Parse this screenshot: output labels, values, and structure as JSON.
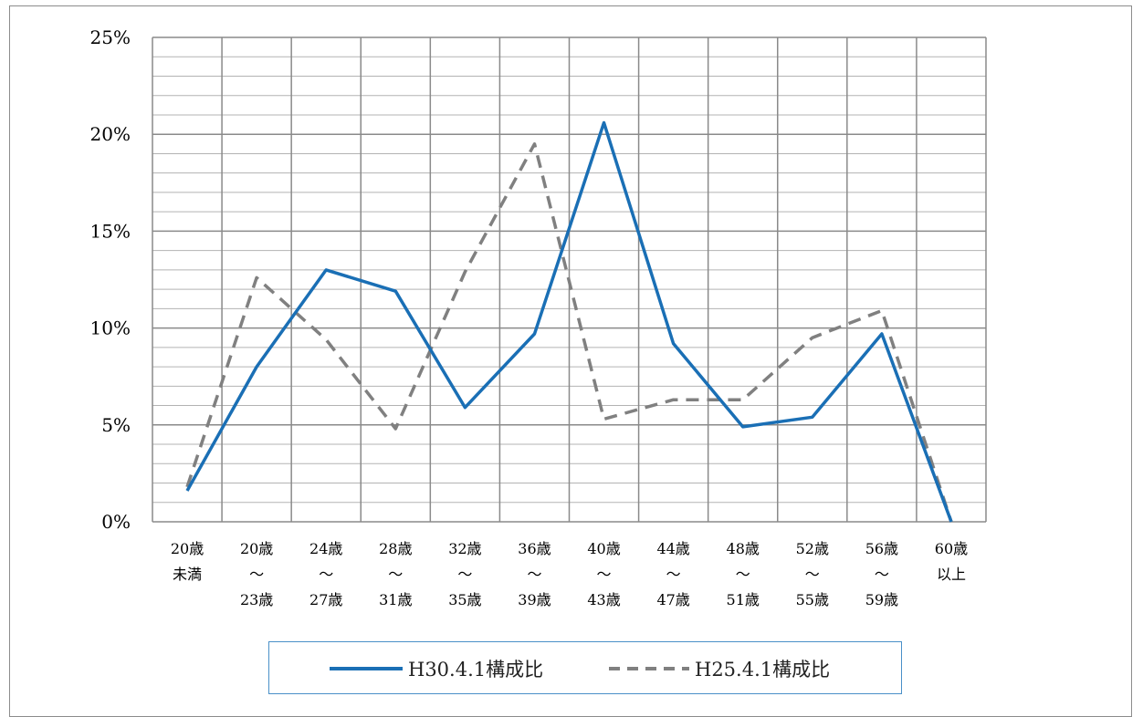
{
  "chart_data": {
    "type": "line",
    "categories": [
      [
        "20歳",
        "未満"
      ],
      [
        "20歳",
        "～",
        "23歳"
      ],
      [
        "24歳",
        "～",
        "27歳"
      ],
      [
        "28歳",
        "～",
        "31歳"
      ],
      [
        "32歳",
        "～",
        "35歳"
      ],
      [
        "36歳",
        "～",
        "39歳"
      ],
      [
        "40歳",
        "～",
        "43歳"
      ],
      [
        "44歳",
        "～",
        "47歳"
      ],
      [
        "48歳",
        "～",
        "51歳"
      ],
      [
        "52歳",
        "～",
        "55歳"
      ],
      [
        "56歳",
        "～",
        "59歳"
      ],
      [
        "60歳",
        "以上"
      ]
    ],
    "series": [
      {
        "name": "H30.4.1構成比",
        "color": "#1a6fb5",
        "style": "solid",
        "values": [
          1.6,
          8.0,
          13.0,
          11.9,
          5.9,
          9.7,
          20.6,
          9.2,
          4.9,
          5.4,
          9.7,
          0.0
        ]
      },
      {
        "name": "H25.4.1構成比",
        "color": "#808080",
        "style": "dashed",
        "values": [
          1.8,
          12.6,
          9.4,
          4.8,
          12.9,
          19.5,
          5.3,
          6.3,
          6.3,
          9.5,
          10.9,
          0.0
        ]
      }
    ],
    "yticks": [
      "0%",
      "5%",
      "10%",
      "15%",
      "20%",
      "25%"
    ],
    "ylim": [
      0,
      25
    ],
    "grid": true,
    "legend_position": "bottom"
  },
  "legend": {
    "items": [
      {
        "label": "H30.4.1構成比"
      },
      {
        "label": "H25.4.1構成比"
      }
    ]
  }
}
